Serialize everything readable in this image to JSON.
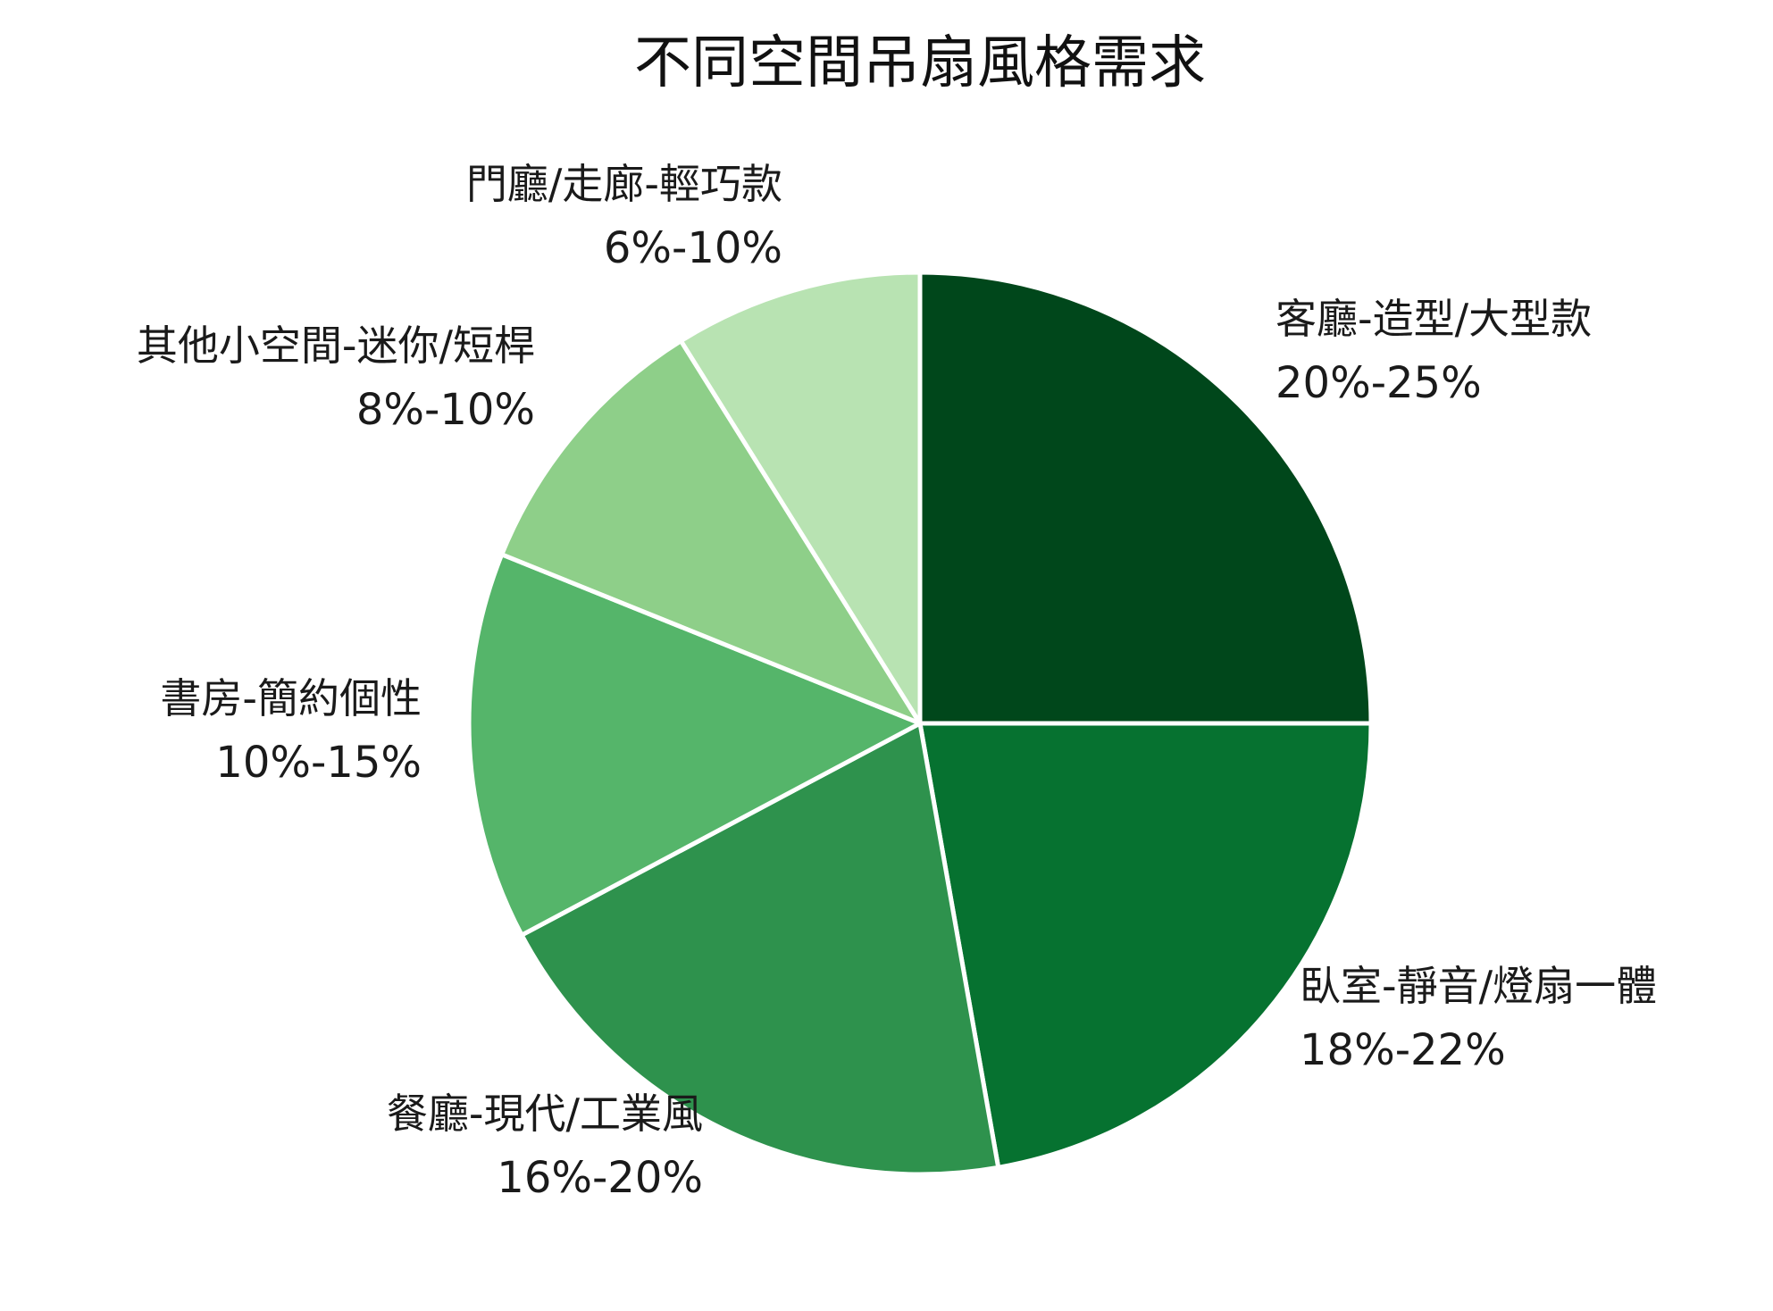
{
  "chart_data": {
    "type": "pie",
    "title": "不同空間吊扇風格需求",
    "start_angle_deg": 0,
    "direction": "clockwise",
    "slices": [
      {
        "label": "客廳-造型/大型款",
        "range_text": "20%-25%",
        "value": 22.5,
        "color": "#00471b"
      },
      {
        "label": "臥室-靜音/燈扇一體",
        "range_text": "18%-22%",
        "value": 20,
        "color": "#067230"
      },
      {
        "label": "餐廳-現代/工業風",
        "range_text": "16%-20%",
        "value": 18,
        "color": "#2e924d"
      },
      {
        "label": "書房-簡約個性",
        "range_text": "10%-15%",
        "value": 12.5,
        "color": "#55b56a"
      },
      {
        "label": "其他小空間-迷你/短桿",
        "range_text": "8%-10%",
        "value": 9,
        "color": "#8ecf89"
      },
      {
        "label": "門廳/走廊-輕巧款",
        "range_text": "6%-10%",
        "value": 8,
        "color": "#b8e3b2"
      }
    ]
  }
}
